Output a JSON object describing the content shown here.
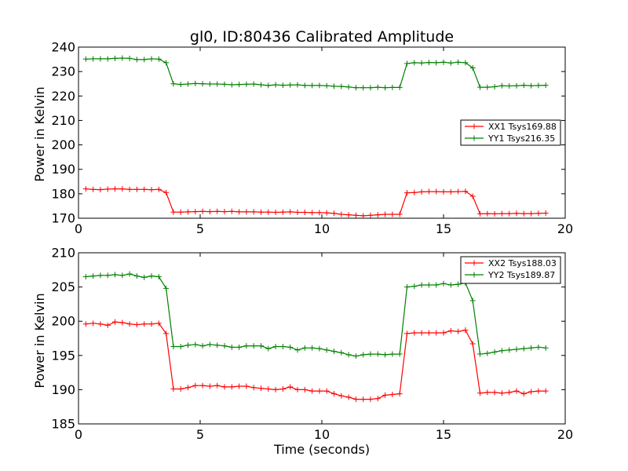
{
  "chart_data": [
    {
      "type": "line",
      "title": "gl0, ID:80436 Calibrated Amplitude",
      "xlabel": "",
      "ylabel": "Power in Kelvin",
      "xlim": [
        0,
        20
      ],
      "ylim": [
        170,
        240
      ],
      "xticks": [
        0,
        5,
        10,
        15,
        20
      ],
      "yticks": [
        170,
        180,
        190,
        200,
        210,
        220,
        230,
        240
      ],
      "grid": false,
      "legend": "center-right",
      "x": [
        0.3,
        0.6,
        0.9,
        1.2,
        1.5,
        1.8,
        2.1,
        2.4,
        2.7,
        3.0,
        3.3,
        3.6,
        3.9,
        4.2,
        4.5,
        4.8,
        5.1,
        5.4,
        5.7,
        6.0,
        6.3,
        6.6,
        6.9,
        7.2,
        7.5,
        7.8,
        8.1,
        8.4,
        8.7,
        9.0,
        9.3,
        9.6,
        9.9,
        10.2,
        10.5,
        10.8,
        11.1,
        11.4,
        11.7,
        12.0,
        12.3,
        12.6,
        12.9,
        13.2,
        13.5,
        13.8,
        14.1,
        14.4,
        14.7,
        15.0,
        15.3,
        15.6,
        15.9,
        16.2,
        16.5,
        16.8,
        17.1,
        17.4,
        17.7,
        18.0,
        18.3,
        18.6,
        18.9,
        19.2
      ],
      "series": [
        {
          "name": "XX1 Tsys169.88",
          "color": "#ff0000",
          "values": [
            182.0,
            181.8,
            181.7,
            181.9,
            182.0,
            182.0,
            181.8,
            181.8,
            181.8,
            181.7,
            181.8,
            180.5,
            172.5,
            172.5,
            172.6,
            172.7,
            172.8,
            172.7,
            172.8,
            172.7,
            172.8,
            172.6,
            172.6,
            172.6,
            172.5,
            172.5,
            172.4,
            172.5,
            172.6,
            172.4,
            172.4,
            172.3,
            172.3,
            172.2,
            172.0,
            171.6,
            171.4,
            171.2,
            171.0,
            171.2,
            171.4,
            171.6,
            171.6,
            171.6,
            180.4,
            180.5,
            180.8,
            180.9,
            180.9,
            180.8,
            180.8,
            180.9,
            181.0,
            179.0,
            171.8,
            171.9,
            171.8,
            171.9,
            171.9,
            172.0,
            171.9,
            171.9,
            172.0,
            172.1
          ]
        },
        {
          "name": "YY1 Tsys216.35",
          "color": "#008000",
          "values": [
            235.1,
            235.2,
            235.2,
            235.2,
            235.4,
            235.5,
            235.4,
            234.9,
            234.9,
            235.2,
            235.1,
            233.6,
            225.0,
            224.7,
            224.9,
            225.1,
            225.0,
            224.9,
            224.9,
            224.8,
            224.6,
            224.7,
            224.8,
            224.9,
            224.6,
            224.3,
            224.6,
            224.4,
            224.5,
            224.6,
            224.3,
            224.3,
            224.3,
            224.2,
            224.0,
            223.9,
            223.7,
            223.4,
            223.4,
            223.4,
            223.6,
            223.4,
            223.5,
            223.5,
            233.3,
            233.6,
            233.5,
            233.7,
            233.6,
            233.8,
            233.5,
            233.8,
            233.6,
            231.5,
            223.6,
            223.6,
            223.8,
            224.2,
            224.1,
            224.2,
            224.4,
            224.2,
            224.3,
            224.4
          ]
        }
      ]
    },
    {
      "type": "line",
      "title": "",
      "xlabel": "Time (seconds)",
      "ylabel": "Power in Kelvin",
      "xlim": [
        0,
        20
      ],
      "ylim": [
        185,
        210
      ],
      "xticks": [
        0,
        5,
        10,
        15,
        20
      ],
      "yticks": [
        185,
        190,
        195,
        200,
        205,
        210
      ],
      "grid": false,
      "legend": "top-right",
      "x": [
        0.3,
        0.6,
        0.9,
        1.2,
        1.5,
        1.8,
        2.1,
        2.4,
        2.7,
        3.0,
        3.3,
        3.6,
        3.9,
        4.2,
        4.5,
        4.8,
        5.1,
        5.4,
        5.7,
        6.0,
        6.3,
        6.6,
        6.9,
        7.2,
        7.5,
        7.8,
        8.1,
        8.4,
        8.7,
        9.0,
        9.3,
        9.6,
        9.9,
        10.2,
        10.5,
        10.8,
        11.1,
        11.4,
        11.7,
        12.0,
        12.3,
        12.6,
        12.9,
        13.2,
        13.5,
        13.8,
        14.1,
        14.4,
        14.7,
        15.0,
        15.3,
        15.6,
        15.9,
        16.2,
        16.5,
        16.8,
        17.1,
        17.4,
        17.7,
        18.0,
        18.3,
        18.6,
        18.9,
        19.2
      ],
      "series": [
        {
          "name": "XX2 Tsys188.03",
          "color": "#ff0000",
          "values": [
            199.6,
            199.7,
            199.6,
            199.4,
            199.9,
            199.8,
            199.6,
            199.5,
            199.6,
            199.6,
            199.7,
            198.2,
            190.1,
            190.1,
            190.3,
            190.6,
            190.6,
            190.5,
            190.6,
            190.4,
            190.4,
            190.5,
            190.5,
            190.3,
            190.2,
            190.1,
            190.0,
            190.1,
            190.4,
            190.0,
            190.0,
            189.8,
            189.8,
            189.8,
            189.4,
            189.1,
            188.9,
            188.6,
            188.6,
            188.6,
            188.7,
            189.2,
            189.3,
            189.4,
            198.2,
            198.3,
            198.3,
            198.3,
            198.3,
            198.3,
            198.6,
            198.5,
            198.7,
            196.7,
            189.5,
            189.6,
            189.6,
            189.5,
            189.6,
            189.8,
            189.4,
            189.7,
            189.8,
            189.8
          ]
        },
        {
          "name": "YY2 Tsys189.87",
          "color": "#008000",
          "values": [
            206.5,
            206.6,
            206.7,
            206.7,
            206.8,
            206.7,
            206.9,
            206.6,
            206.4,
            206.6,
            206.5,
            204.8,
            196.3,
            196.3,
            196.5,
            196.6,
            196.4,
            196.6,
            196.5,
            196.4,
            196.2,
            196.2,
            196.4,
            196.4,
            196.4,
            196.0,
            196.3,
            196.3,
            196.2,
            195.8,
            196.1,
            196.1,
            196.0,
            195.8,
            195.6,
            195.4,
            195.1,
            194.9,
            195.1,
            195.2,
            195.2,
            195.1,
            195.2,
            195.2,
            205.0,
            205.1,
            205.3,
            205.3,
            205.3,
            205.5,
            205.3,
            205.4,
            205.6,
            203.0,
            195.2,
            195.3,
            195.5,
            195.7,
            195.8,
            195.9,
            196.0,
            196.1,
            196.2,
            196.1
          ]
        }
      ]
    }
  ]
}
